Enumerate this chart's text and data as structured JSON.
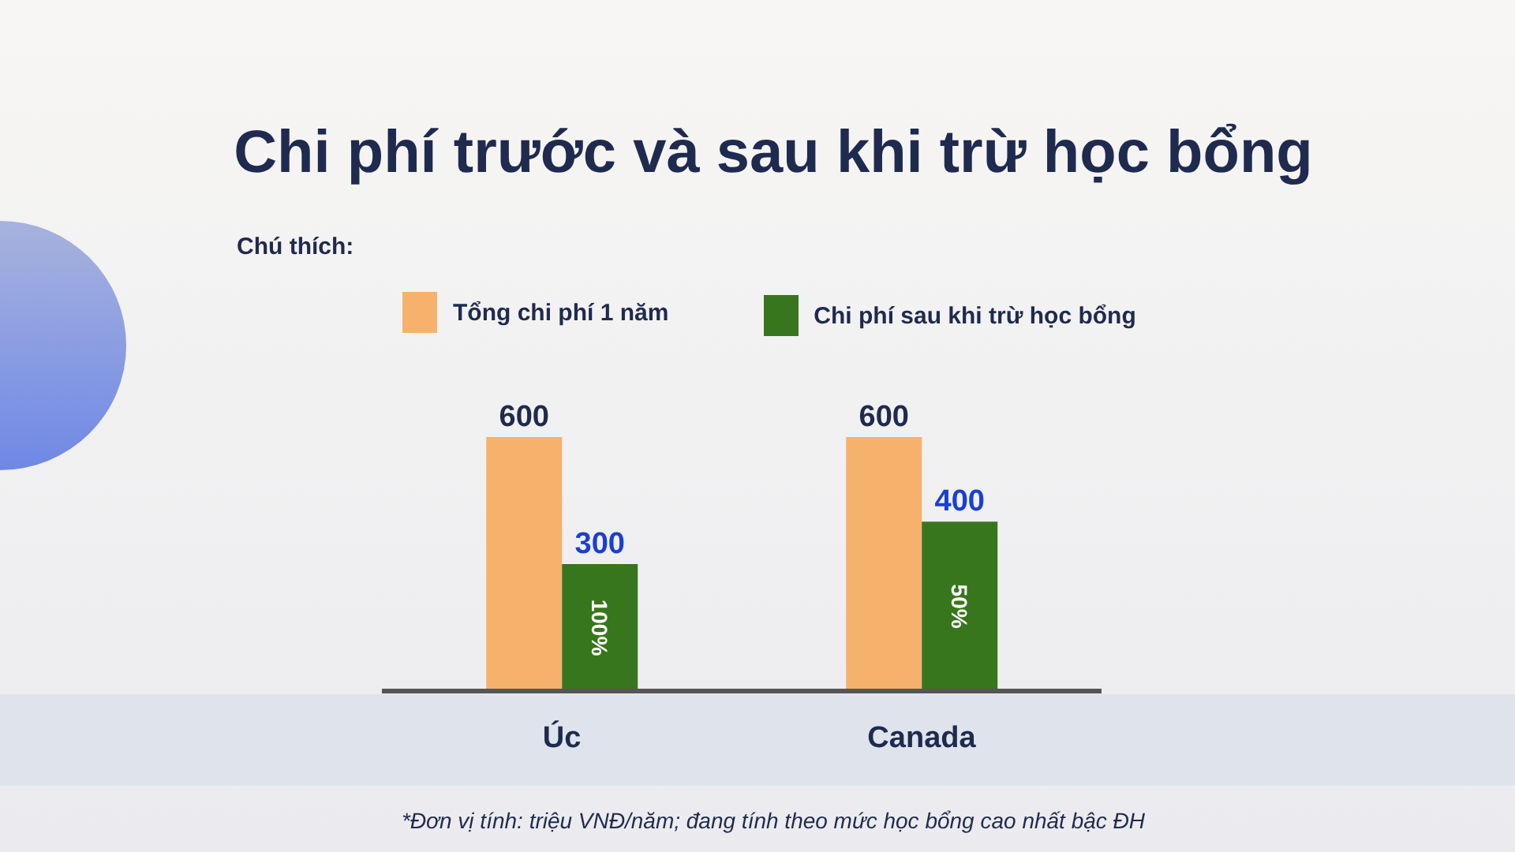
{
  "chart_data": {
    "type": "bar",
    "title": "Chi phí trước và sau khi trừ học bổng",
    "legend_title": "Chú thích:",
    "categories": [
      "Úc",
      "Canada"
    ],
    "series": [
      {
        "name": "Tổng chi phí 1 năm",
        "color": "#f6b16c",
        "values": [
          600,
          600
        ]
      },
      {
        "name": "Chi phí sau khi trừ học bổng",
        "color": "#38761d",
        "values": [
          300,
          400
        ]
      }
    ],
    "data_labels": true,
    "legend": "top left",
    "tick_labels": "x",
    "annotations": [
      {
        "text": "100%",
        "x": "Úc",
        "y": 150
      },
      {
        "text": "50%",
        "x": "Canada",
        "y": 200
      },
      "*Đơn vị tính: triệu VNĐ/năm; đang tính theo mức học bổng cao nhất bậc ĐH"
    ]
  }
}
